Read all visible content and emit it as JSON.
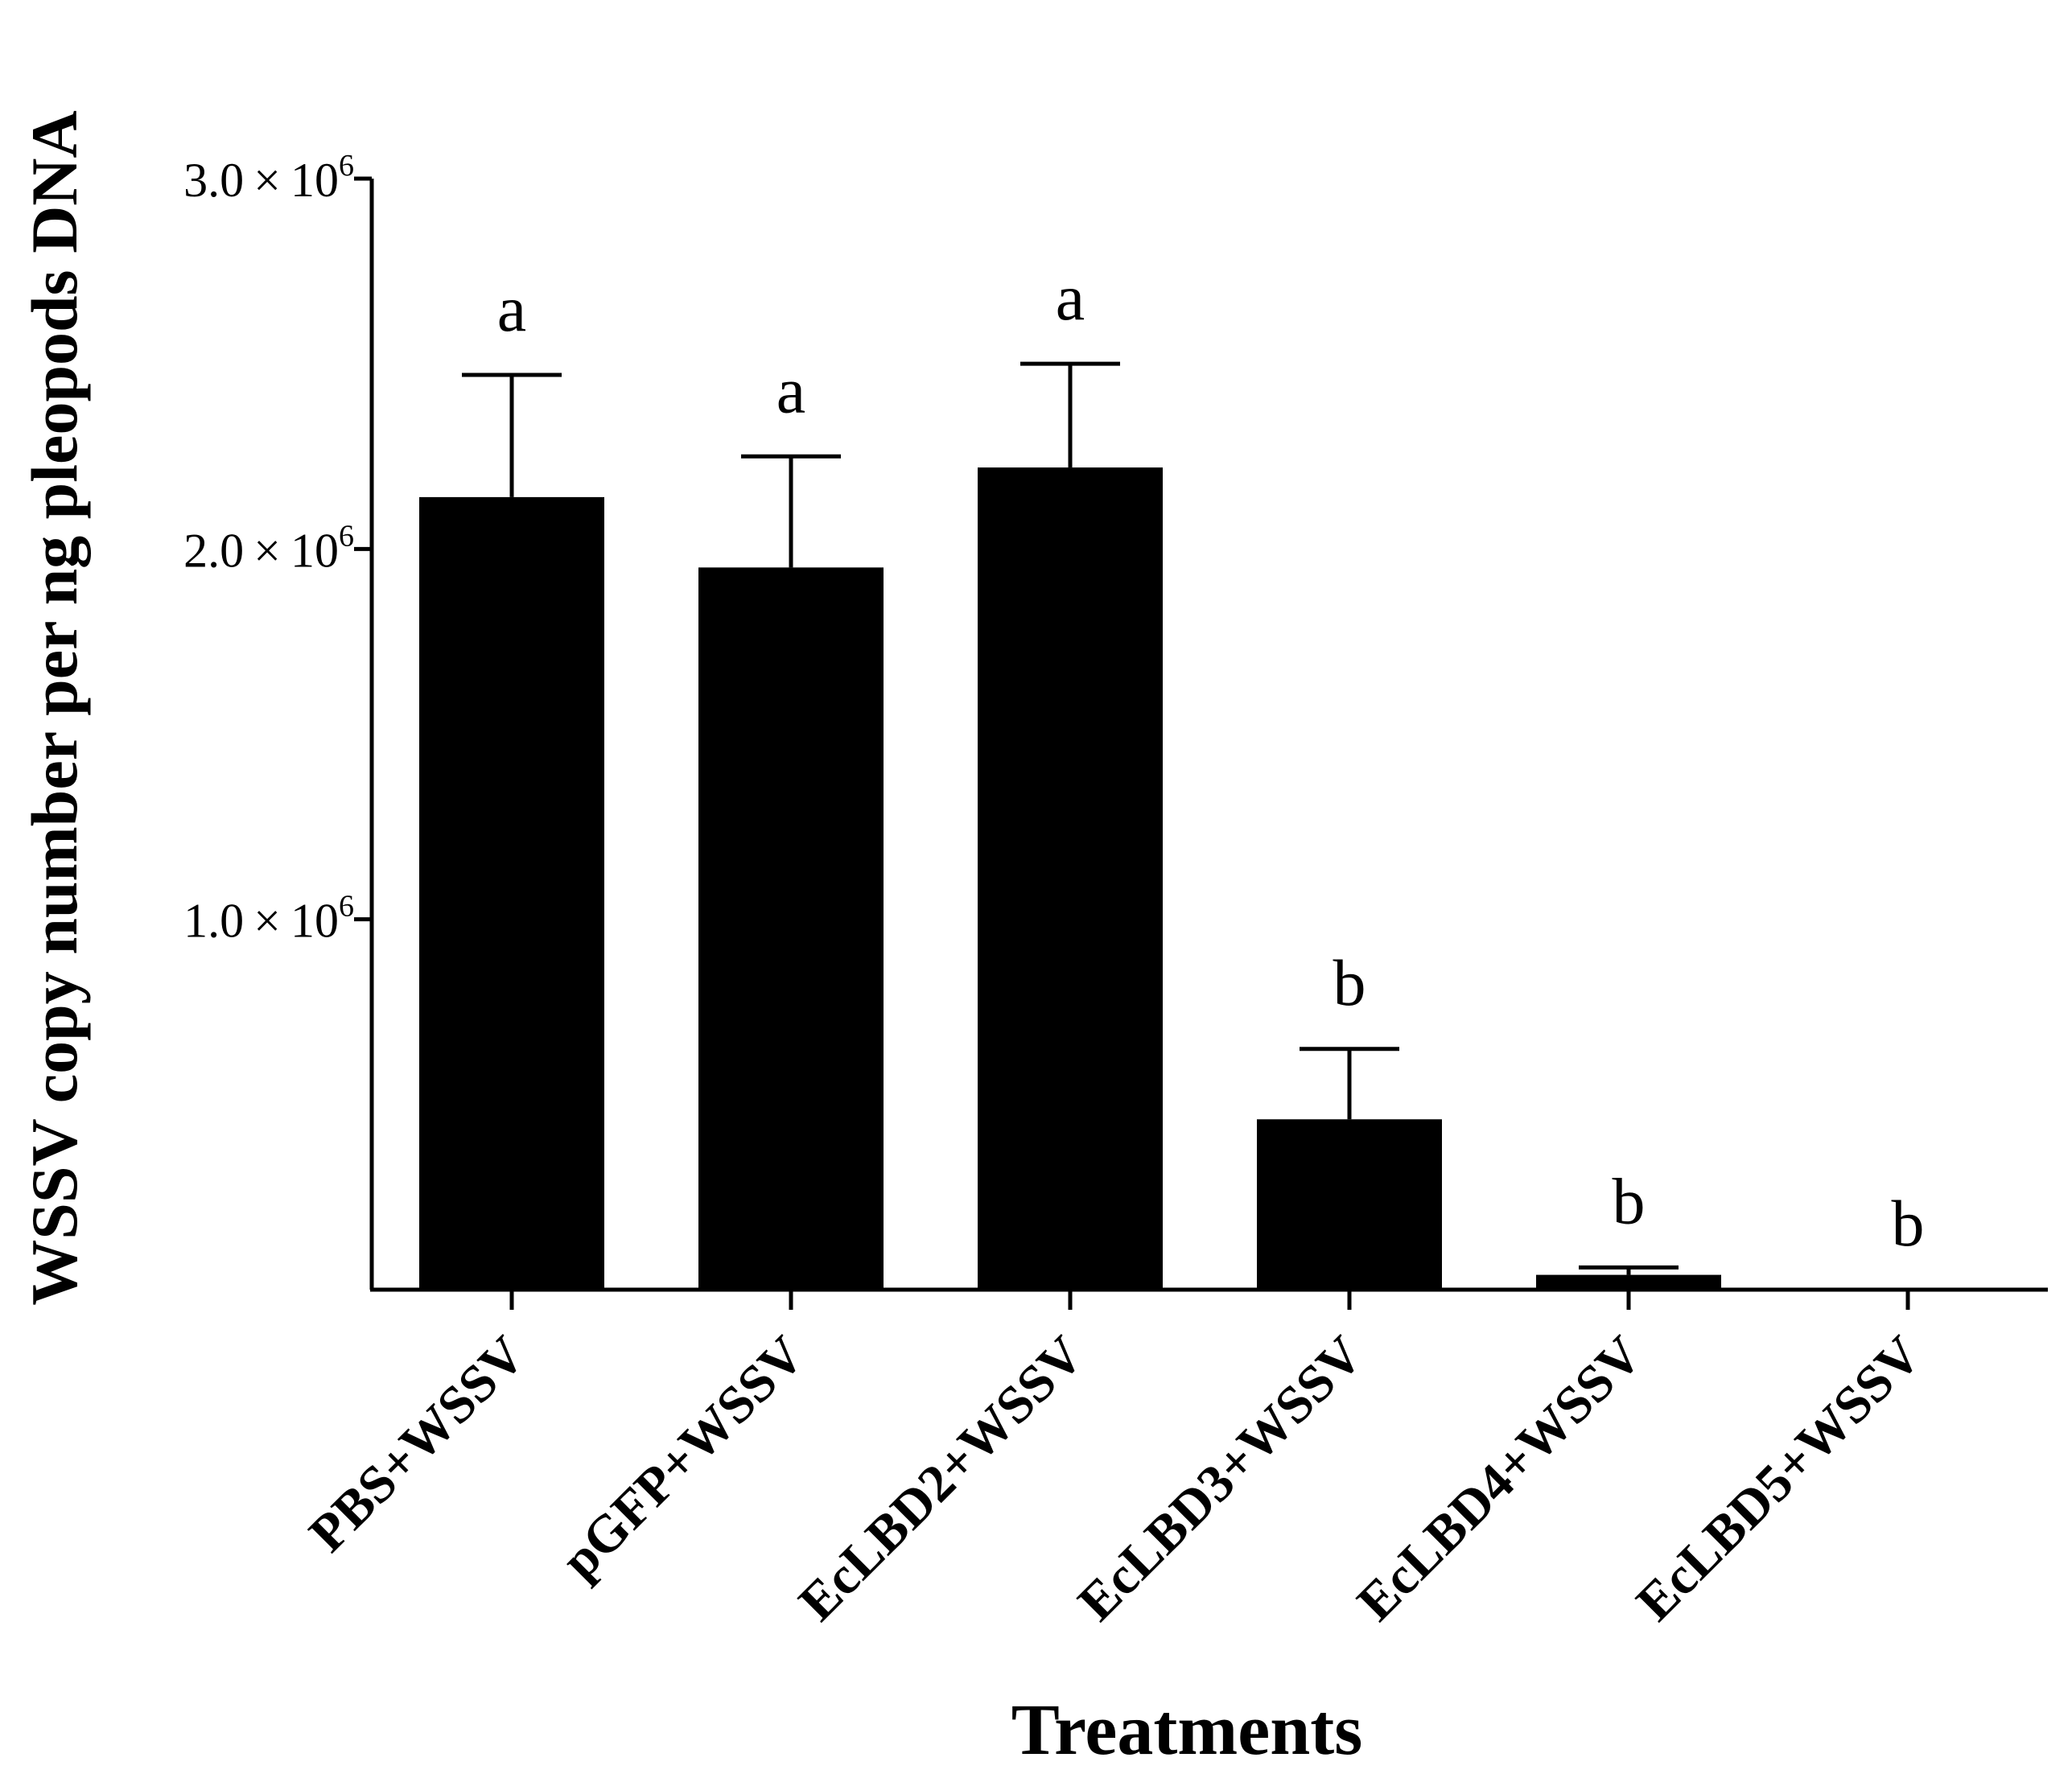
{
  "chart_data": {
    "type": "bar",
    "title": "",
    "xlabel": "Treatments",
    "ylabel": "WSSV copy number per ng pleopods DNA",
    "ylim": [
      0,
      3000000
    ],
    "yticks": [
      {
        "value": 1000000,
        "mantissa": "1.0",
        "times": "×",
        "base": "10",
        "exp": "6"
      },
      {
        "value": 2000000,
        "mantissa": "2.0",
        "times": "×",
        "base": "10",
        "exp": "6"
      },
      {
        "value": 3000000,
        "mantissa": "3.0",
        "times": "×",
        "base": "10",
        "exp": "6"
      }
    ],
    "categories": [
      "PBS+WSSV",
      "pGFP+WSSV",
      "EcLBD2+WSSV",
      "EcLBD3+WSSV",
      "EcLBD4+WSSV",
      "EcLBD5+WSSV"
    ],
    "series": [
      {
        "name": "WSSV copy number",
        "values": [
          2140000,
          1950000,
          2220000,
          460000,
          40000,
          0
        ],
        "errors": [
          330000,
          300000,
          280000,
          190000,
          20000,
          0
        ],
        "significance": [
          "a",
          "a",
          "a",
          "b",
          "b",
          "b"
        ]
      }
    ],
    "bar_color": "#000000",
    "grid": false
  }
}
